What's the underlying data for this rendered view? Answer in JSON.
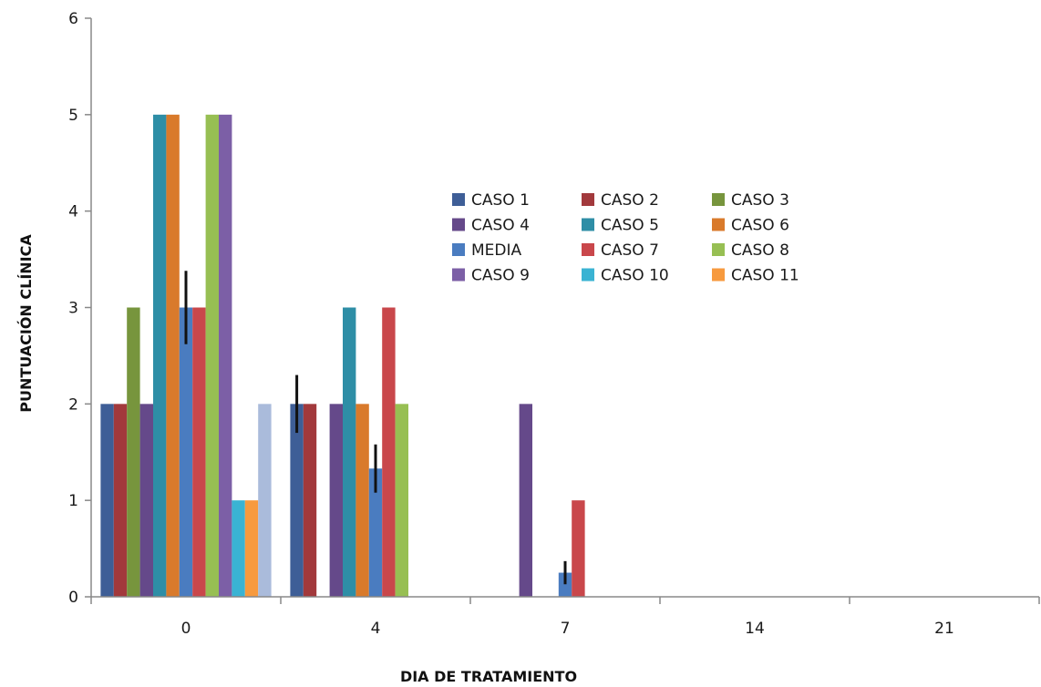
{
  "chart_data": {
    "type": "bar",
    "title": "",
    "xlabel": "DIA DE TRATAMIENTO",
    "ylabel": "PUNTUACIÓN CLÍNICA",
    "ylim": [
      0,
      6
    ],
    "yticks": [
      "0",
      "1",
      "2",
      "3",
      "4",
      "5",
      "6"
    ],
    "categories": [
      "0",
      "4",
      "7",
      "14",
      "21"
    ],
    "grid": false,
    "legend_position": "center",
    "series": [
      {
        "name": "CASO 1",
        "color": "#3e5e97",
        "values": [
          2,
          2,
          0,
          0,
          0
        ]
      },
      {
        "name": "CASO 2",
        "color": "#a2393c",
        "values": [
          2,
          2,
          0,
          0,
          0
        ]
      },
      {
        "name": "CASO 3",
        "color": "#77953d",
        "values": [
          3,
          null,
          0,
          0,
          0
        ]
      },
      {
        "name": "CASO 4",
        "color": "#65498a",
        "values": [
          2,
          2,
          2,
          0,
          0
        ]
      },
      {
        "name": "CASO 5",
        "color": "#2e8ea6",
        "values": [
          5,
          3,
          0,
          0,
          0
        ]
      },
      {
        "name": "CASO 6",
        "color": "#d97a2b",
        "values": [
          5,
          2,
          0,
          0,
          0
        ]
      },
      {
        "name": "MEDIA",
        "color": "#4a7cc0",
        "values": [
          3,
          1.33,
          0.25,
          0,
          0
        ],
        "error": [
          0.38,
          0.25,
          0.12,
          0,
          0
        ]
      },
      {
        "name": "CASO 7",
        "color": "#c9474b",
        "values": [
          3,
          3,
          1,
          0,
          0
        ]
      },
      {
        "name": "CASO 8",
        "color": "#97bf53",
        "values": [
          5,
          2,
          0,
          0,
          0
        ]
      },
      {
        "name": "CASO 9",
        "color": "#7c5fa6",
        "values": [
          5,
          null,
          0,
          0,
          0
        ]
      },
      {
        "name": "CASO 10",
        "color": "#3ab3d3",
        "values": [
          1,
          null,
          0,
          0,
          0
        ]
      },
      {
        "name": "CASO 11",
        "color": "#f79a3e",
        "values": [
          1,
          null,
          0,
          0,
          0
        ]
      },
      {
        "name": "",
        "color": "#aabbdb",
        "values": [
          2,
          null,
          0,
          0,
          0
        ]
      }
    ],
    "extra_errorbars": [
      {
        "category": "4",
        "value": 2,
        "error": 0.3
      }
    ],
    "legend_columns": 3
  }
}
